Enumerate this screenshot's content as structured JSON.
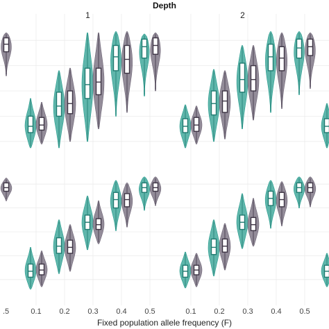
{
  "chart_data": {
    "type": "violin",
    "title": "Depth",
    "xlabel": "Fixed population allele frequency (F)",
    "ylabel": "",
    "ylim": [
      0,
      1
    ],
    "grid": true,
    "legend": "none",
    "colors": {
      "teal": "#2a9d8f",
      "gray": "#6f6677",
      "box_fill": "#ffffff",
      "box_teal": "#1f7a70",
      "box_gray": "#3d3444"
    },
    "groups": [
      "teal",
      "gray"
    ],
    "left_edge_tick": ".5",
    "panels": [
      {
        "strip": "1",
        "row": 0,
        "col": 0,
        "categories": [
          "0.1",
          "0.2",
          "0.3",
          "0.4",
          "0.5"
        ],
        "violins": [
          {
            "x": "0.1",
            "group": "teal",
            "median": 0.22,
            "q1": 0.17,
            "q3": 0.3,
            "min": 0.05,
            "max": 0.44
          },
          {
            "x": "0.1",
            "group": "gray",
            "median": 0.23,
            "q1": 0.19,
            "q3": 0.29,
            "min": 0.08,
            "max": 0.41
          },
          {
            "x": "0.2",
            "group": "teal",
            "median": 0.38,
            "q1": 0.3,
            "q3": 0.49,
            "min": 0.05,
            "max": 0.66
          },
          {
            "x": "0.2",
            "group": "gray",
            "median": 0.4,
            "q1": 0.32,
            "q3": 0.5,
            "min": 0.1,
            "max": 0.68
          },
          {
            "x": "0.3",
            "group": "teal",
            "median": 0.55,
            "q1": 0.44,
            "q3": 0.68,
            "min": 0.1,
            "max": 0.96
          },
          {
            "x": "0.3",
            "group": "gray",
            "median": 0.57,
            "q1": 0.47,
            "q3": 0.68,
            "min": 0.2,
            "max": 0.96
          },
          {
            "x": "0.4",
            "group": "teal",
            "median": 0.77,
            "q1": 0.66,
            "q3": 0.86,
            "min": 0.3,
            "max": 0.97
          },
          {
            "x": "0.4",
            "group": "gray",
            "median": 0.75,
            "q1": 0.64,
            "q3": 0.86,
            "min": 0.33,
            "max": 0.97
          },
          {
            "x": "0.5",
            "group": "teal",
            "median": 0.85,
            "q1": 0.76,
            "q3": 0.91,
            "min": 0.46,
            "max": 0.95
          },
          {
            "x": "0.5",
            "group": "gray",
            "median": 0.86,
            "q1": 0.79,
            "q3": 0.92,
            "min": 0.5,
            "max": 0.96
          }
        ]
      },
      {
        "strip": "2",
        "row": 0,
        "col": 1,
        "categories": [
          "0.1",
          "0.2",
          "0.3",
          "0.4",
          "0.5"
        ],
        "violins": [
          {
            "x": "0.1",
            "group": "teal",
            "median": 0.22,
            "q1": 0.17,
            "q3": 0.28,
            "min": 0.05,
            "max": 0.39
          },
          {
            "x": "0.1",
            "group": "gray",
            "median": 0.23,
            "q1": 0.18,
            "q3": 0.29,
            "min": 0.08,
            "max": 0.38
          },
          {
            "x": "0.2",
            "group": "teal",
            "median": 0.4,
            "q1": 0.31,
            "q3": 0.5,
            "min": 0.1,
            "max": 0.67
          },
          {
            "x": "0.2",
            "group": "gray",
            "median": 0.42,
            "q1": 0.33,
            "q3": 0.5,
            "min": 0.12,
            "max": 0.66
          },
          {
            "x": "0.3",
            "group": "teal",
            "median": 0.59,
            "q1": 0.49,
            "q3": 0.72,
            "min": 0.2,
            "max": 0.86
          },
          {
            "x": "0.3",
            "group": "gray",
            "median": 0.59,
            "q1": 0.5,
            "q3": 0.7,
            "min": 0.27,
            "max": 0.86
          },
          {
            "x": "0.4",
            "group": "teal",
            "median": 0.77,
            "q1": 0.66,
            "q3": 0.87,
            "min": 0.33,
            "max": 0.97
          },
          {
            "x": "0.4",
            "group": "gray",
            "median": 0.76,
            "q1": 0.66,
            "q3": 0.85,
            "min": 0.36,
            "max": 0.96
          },
          {
            "x": "0.5",
            "group": "teal",
            "median": 0.84,
            "q1": 0.76,
            "q3": 0.91,
            "min": 0.47,
            "max": 0.97
          },
          {
            "x": "0.5",
            "group": "gray",
            "median": 0.85,
            "q1": 0.78,
            "q3": 0.91,
            "min": 0.52,
            "max": 0.96
          }
        ]
      },
      {
        "strip": "",
        "row": 1,
        "col": 0,
        "categories": [
          "0.1",
          "0.2",
          "0.3",
          "0.4",
          "0.5"
        ],
        "violins": [
          {
            "x": "0.1",
            "group": "teal",
            "median": 0.17,
            "q1": 0.12,
            "q3": 0.23,
            "min": 0.02,
            "max": 0.37
          },
          {
            "x": "0.1",
            "group": "gray",
            "median": 0.18,
            "q1": 0.14,
            "q3": 0.23,
            "min": 0.04,
            "max": 0.34
          },
          {
            "x": "0.2",
            "group": "teal",
            "median": 0.38,
            "q1": 0.32,
            "q3": 0.45,
            "min": 0.15,
            "max": 0.6
          },
          {
            "x": "0.2",
            "group": "gray",
            "median": 0.37,
            "q1": 0.32,
            "q3": 0.43,
            "min": 0.17,
            "max": 0.56
          },
          {
            "x": "0.3",
            "group": "teal",
            "median": 0.58,
            "q1": 0.52,
            "q3": 0.64,
            "min": 0.35,
            "max": 0.8
          },
          {
            "x": "0.3",
            "group": "gray",
            "median": 0.56,
            "q1": 0.52,
            "q3": 0.61,
            "min": 0.4,
            "max": 0.76
          },
          {
            "x": "0.4",
            "group": "teal",
            "median": 0.77,
            "q1": 0.7,
            "q3": 0.83,
            "min": 0.51,
            "max": 0.93
          },
          {
            "x": "0.4",
            "group": "gray",
            "median": 0.77,
            "q1": 0.71,
            "q3": 0.82,
            "min": 0.54,
            "max": 0.91
          },
          {
            "x": "0.5",
            "group": "teal",
            "median": 0.87,
            "q1": 0.83,
            "q3": 0.91,
            "min": 0.68,
            "max": 0.96
          },
          {
            "x": "0.5",
            "group": "gray",
            "median": 0.87,
            "q1": 0.84,
            "q3": 0.91,
            "min": 0.72,
            "max": 0.96
          }
        ]
      },
      {
        "strip": "",
        "row": 1,
        "col": 1,
        "categories": [
          "0.1",
          "0.2",
          "0.3",
          "0.4",
          "0.5"
        ],
        "violins": [
          {
            "x": "0.1",
            "group": "teal",
            "median": 0.17,
            "q1": 0.12,
            "q3": 0.22,
            "min": 0.03,
            "max": 0.33
          },
          {
            "x": "0.1",
            "group": "gray",
            "median": 0.18,
            "q1": 0.14,
            "q3": 0.22,
            "min": 0.04,
            "max": 0.32
          },
          {
            "x": "0.2",
            "group": "teal",
            "median": 0.37,
            "q1": 0.31,
            "q3": 0.44,
            "min": 0.13,
            "max": 0.6
          },
          {
            "x": "0.2",
            "group": "gray",
            "median": 0.38,
            "q1": 0.33,
            "q3": 0.44,
            "min": 0.18,
            "max": 0.57
          },
          {
            "x": "0.3",
            "group": "teal",
            "median": 0.58,
            "q1": 0.52,
            "q3": 0.64,
            "min": 0.36,
            "max": 0.82
          },
          {
            "x": "0.3",
            "group": "gray",
            "median": 0.56,
            "q1": 0.51,
            "q3": 0.62,
            "min": 0.38,
            "max": 0.78
          },
          {
            "x": "0.4",
            "group": "teal",
            "median": 0.78,
            "q1": 0.72,
            "q3": 0.84,
            "min": 0.53,
            "max": 0.93
          },
          {
            "x": "0.4",
            "group": "gray",
            "median": 0.77,
            "q1": 0.71,
            "q3": 0.83,
            "min": 0.55,
            "max": 0.92
          },
          {
            "x": "0.5",
            "group": "teal",
            "median": 0.87,
            "q1": 0.83,
            "q3": 0.91,
            "min": 0.7,
            "max": 0.96
          },
          {
            "x": "0.5",
            "group": "gray",
            "median": 0.87,
            "q1": 0.83,
            "q3": 0.91,
            "min": 0.71,
            "max": 0.96
          }
        ]
      }
    ],
    "edge_violins": [
      {
        "side": "left",
        "row": 0,
        "group": "gray",
        "median": 0.87,
        "q1": 0.81,
        "q3": 0.92,
        "min": 0.62,
        "max": 0.96
      },
      {
        "side": "left",
        "row": 1,
        "group": "gray",
        "median": 0.87,
        "q1": 0.84,
        "q3": 0.91,
        "min": 0.76,
        "max": 0.95
      },
      {
        "side": "right",
        "row": 0,
        "group": "teal",
        "median": 0.22,
        "q1": 0.17,
        "q3": 0.28,
        "min": 0.05,
        "max": 0.4
      },
      {
        "side": "right",
        "row": 1,
        "group": "teal",
        "median": 0.17,
        "q1": 0.12,
        "q3": 0.22,
        "min": 0.04,
        "max": 0.32
      }
    ]
  }
}
